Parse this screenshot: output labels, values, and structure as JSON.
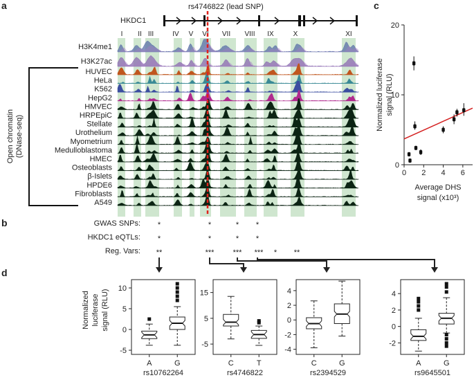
{
  "panel_letters": [
    "a",
    "b",
    "c",
    "d"
  ],
  "panel_a": {
    "gene": "HKDC1",
    "lead_snp_label": "rs4746822 (lead SNP)",
    "regions": [
      "I",
      "II",
      "III",
      "IV",
      "V",
      "VI",
      "VII",
      "VIII",
      "IX",
      "X",
      "XI"
    ],
    "histone_tracks": [
      {
        "name": "H3K4me1",
        "color": "#5b6fa8"
      },
      {
        "name": "H3K27ac",
        "color": "#8c6bb1"
      }
    ],
    "bracket_label_line1": "Open chromatin",
    "bracket_label_line2": "(DNase-seq)",
    "dnase_tracks": [
      {
        "name": "HUVEC",
        "color": "#c0561e"
      },
      {
        "name": "HeLa",
        "color": "#3a8a96"
      },
      {
        "name": "K562",
        "color": "#3b4ea0"
      },
      {
        "name": "HepG2",
        "color": "#b02a8e"
      },
      {
        "name": "HMVEC",
        "color": "#0c2414"
      },
      {
        "name": "HRPEpiC",
        "color": "#0c2414"
      },
      {
        "name": "Stellate",
        "color": "#0c2414"
      },
      {
        "name": "Urothelium",
        "color": "#0c2414"
      },
      {
        "name": "Myometrium",
        "color": "#0c2414"
      },
      {
        "name": "Medulloblastoma",
        "color": "#0c2414"
      },
      {
        "name": "HMEC",
        "color": "#0c2414"
      },
      {
        "name": "Osteoblasts",
        "color": "#0c2414"
      },
      {
        "name": "β-Islets",
        "color": "#0c2414"
      },
      {
        "name": "HPDE6",
        "color": "#0c2414"
      },
      {
        "name": "Fibroblasts",
        "color": "#0c2414"
      },
      {
        "name": "A549",
        "color": "#0c2414"
      }
    ],
    "highlight_color": "#cfe6cf",
    "lead_line_color": "#e0221c"
  },
  "panel_b": {
    "rows": [
      {
        "label": "GWAS SNPs:",
        "marks": [
          "*",
          "*",
          "*",
          "*"
        ]
      },
      {
        "label": "HKDC1 eQTLs:",
        "marks": [
          "*",
          "*",
          "*",
          "*"
        ]
      },
      {
        "label": "Reg. Vars:",
        "marks": [
          "**",
          "***",
          "***",
          "***",
          "*",
          "**"
        ]
      }
    ]
  },
  "panel_c": {
    "chart_data": {
      "type": "scatter",
      "xlabel_line1": "Average DHS",
      "xlabel_line2": "signal (x10³)",
      "ylabel_line1": "Normalized luciferase",
      "ylabel_line2": "signal (RLU)",
      "xticks": [
        "0",
        "2",
        "4",
        "6"
      ],
      "yticks": [
        "0",
        "10",
        "20"
      ],
      "xlim": [
        0,
        7
      ],
      "ylim": [
        0,
        20
      ],
      "points": [
        {
          "x": 0.5,
          "y": 1.5,
          "lo": 1.2,
          "hi": 1.8
        },
        {
          "x": 0.6,
          "y": 0.6,
          "lo": 0.4,
          "hi": 0.8
        },
        {
          "x": 1.0,
          "y": 14.5,
          "lo": 13.5,
          "hi": 15.5
        },
        {
          "x": 1.1,
          "y": 5.5,
          "lo": 5.0,
          "hi": 6.2
        },
        {
          "x": 1.2,
          "y": 2.4,
          "lo": 2.1,
          "hi": 2.7
        },
        {
          "x": 1.7,
          "y": 1.8,
          "lo": 1.4,
          "hi": 2.2
        },
        {
          "x": 4.0,
          "y": 5.0,
          "lo": 4.5,
          "hi": 5.5
        },
        {
          "x": 5.1,
          "y": 6.5,
          "lo": 5.8,
          "hi": 7.2
        },
        {
          "x": 5.4,
          "y": 7.5,
          "lo": 6.9,
          "hi": 8.0
        },
        {
          "x": 6.1,
          "y": 7.8,
          "lo": 7.0,
          "hi": 8.8
        }
      ],
      "trendline": {
        "x": [
          0,
          7
        ],
        "y": [
          3.7,
          8.1
        ]
      },
      "trend_color": "#d42020"
    }
  },
  "panel_d": {
    "ylabel_line1": "Normalized",
    "ylabel_line2": "luciferase",
    "ylabel_line3": "signal (RLU)",
    "chart_data": [
      {
        "type": "box",
        "snp": "rs10762264",
        "categories": [
          "A",
          "G"
        ],
        "yticks": [
          "-5",
          "0",
          "5",
          "10"
        ],
        "ylim": [
          -6,
          12
        ],
        "boxes": [
          {
            "q1": -2.2,
            "med": -1.3,
            "q3": -0.4,
            "lo": -3.8,
            "hi": 1.3,
            "outliers": [
              2.5
            ]
          },
          {
            "q1": 0.0,
            "med": 1.5,
            "q3": 3.0,
            "lo": -3.8,
            "hi": 5.5,
            "outliers": [
              7,
              8,
              9,
              10,
              11
            ]
          }
        ]
      },
      {
        "type": "box",
        "snp": "rs4746822",
        "categories": [
          "C",
          "T"
        ],
        "yticks": [
          "-5",
          "5",
          "15"
        ],
        "ylim": [
          -9,
          20
        ],
        "boxes": [
          {
            "q1": 2.0,
            "med": 3.5,
            "q3": 6.5,
            "lo": -3.0,
            "hi": 13.5,
            "outliers": []
          },
          {
            "q1": -2.8,
            "med": -1.3,
            "q3": 0.3,
            "lo": -5.5,
            "hi": 2.0,
            "outliers": [
              3.3,
              4.0
            ]
          }
        ]
      },
      {
        "type": "box",
        "snp": "rs2394529",
        "categories": [
          "C",
          "G"
        ],
        "yticks": [
          "-4",
          "-2",
          "0",
          "2",
          "4"
        ],
        "ylim": [
          -4.7,
          5.5
        ],
        "boxes": [
          {
            "q1": -1.2,
            "med": -0.5,
            "q3": 0.3,
            "lo": -3.8,
            "hi": 2.6,
            "outliers": []
          },
          {
            "q1": -0.5,
            "med": 0.8,
            "q3": 2.2,
            "lo": -2.2,
            "hi": 5.3,
            "outliers": []
          }
        ]
      },
      {
        "type": "box",
        "snp": "rs9645501",
        "categories": [
          "A",
          "G"
        ],
        "yticks": [
          "-2",
          "0",
          "2",
          "4"
        ],
        "ylim": [
          -3.4,
          5.7
        ],
        "boxes": [
          {
            "q1": -1.7,
            "med": -1.2,
            "q3": -0.4,
            "lo": -3.0,
            "hi": 1.0,
            "outliers": [
              2.0,
              2.5,
              3.0,
              3.4
            ]
          },
          {
            "q1": 0.3,
            "med": 1.0,
            "q3": 1.6,
            "lo": -0.8,
            "hi": 3.5,
            "outliers": [
              4.2,
              4.8,
              5.2,
              -1.0,
              -1.5,
              -2.0,
              -2.4
            ]
          }
        ]
      }
    ]
  }
}
